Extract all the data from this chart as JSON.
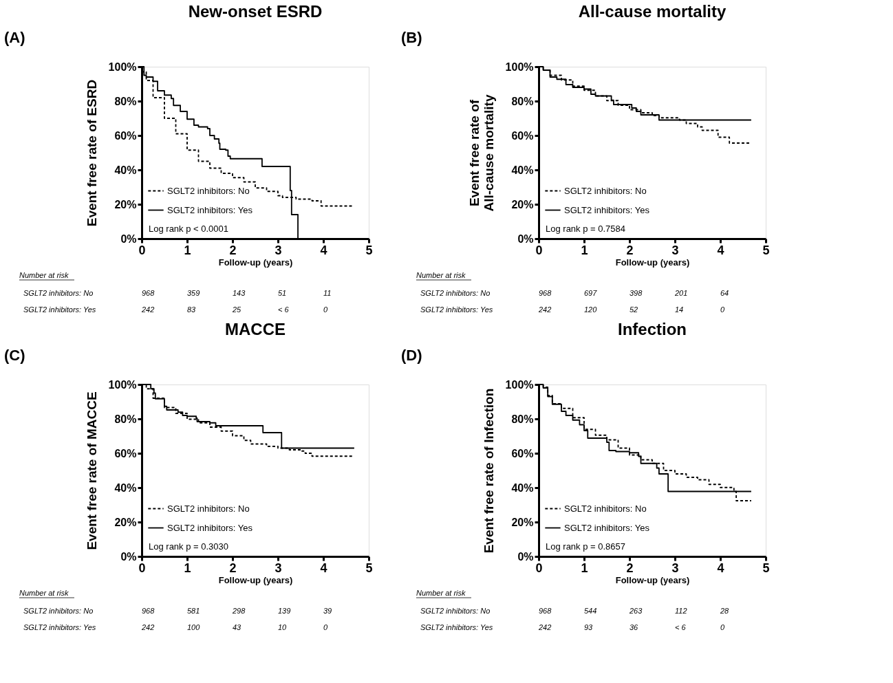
{
  "chart_data": [
    {
      "type": "step",
      "title": "New-onset ESRD",
      "xlabel": "Follow-up (years)",
      "ylabel": "Event free rate of ESRD",
      "legend": "bottom left",
      "xlim": [
        0,
        5
      ],
      "xticks": [
        0,
        1,
        2,
        3,
        4,
        5
      ],
      "ylim": [
        0,
        100
      ],
      "yticks": [
        {
          "value": 0,
          "label": "0%"
        },
        {
          "value": 20,
          "label": "20%"
        },
        {
          "value": 40,
          "label": "40%"
        },
        {
          "value": 60,
          "label": "60%"
        },
        {
          "value": 80,
          "label": "80%"
        },
        {
          "value": 100,
          "label": "100%"
        }
      ],
      "series": [
        {
          "name": "SGLT2 inhibitors: No",
          "color": "#000000",
          "line_style": "dashed",
          "x": [
            0,
            0.02,
            0.1,
            0.25,
            0.5,
            0.75,
            1,
            1.25,
            1.5,
            1.75,
            2,
            2.25,
            2.5,
            2.75,
            3,
            3.1,
            3.4,
            3.75,
            3.95,
            4.65
          ],
          "values": [
            100,
            97,
            92,
            82,
            70,
            61,
            51.5,
            45,
            41,
            38,
            35.5,
            33,
            29.5,
            27.5,
            25,
            24,
            23,
            22,
            19,
            19
          ]
        },
        {
          "name": "SGLT2 inhibitors: Yes",
          "color": "#000000",
          "line_style": "solid",
          "x": [
            0,
            0.05,
            0.1,
            0.25,
            0.35,
            0.5,
            0.65,
            0.7,
            0.85,
            1.0,
            1.15,
            1.25,
            1.45,
            1.5,
            1.6,
            1.7,
            1.72,
            1.85,
            1.9,
            1.95,
            2.65,
            3.27,
            3.3,
            3.44
          ],
          "values": [
            100,
            95,
            94,
            91.5,
            86,
            83.5,
            81.5,
            77.5,
            74,
            69.5,
            66,
            65,
            64,
            60,
            58,
            55.5,
            52,
            51.5,
            48,
            46.5,
            42,
            28,
            14,
            0
          ]
        }
      ],
      "annotations": [
        "(A)",
        "Log rank p < 0.0001",
        "Number at risk",
        "SGLT2 inhibitors: No",
        "968",
        "359",
        "143",
        "51",
        "11",
        "SGLT2 inhibitors: Yes",
        "242",
        "83",
        "25",
        "< 6",
        "0"
      ]
    },
    {
      "type": "step",
      "title": "All-cause mortality",
      "xlabel": "Follow-up (years)",
      "ylabel": "Event free rate of\nAll-cause mortality",
      "legend": "bottom left",
      "xlim": [
        0,
        5
      ],
      "xticks": [
        0,
        1,
        2,
        3,
        4,
        5
      ],
      "ylim": [
        0,
        100
      ],
      "yticks": [
        {
          "value": 0,
          "label": "0%"
        },
        {
          "value": 20,
          "label": "20%"
        },
        {
          "value": 40,
          "label": "40%"
        },
        {
          "value": 60,
          "label": "60%"
        },
        {
          "value": 80,
          "label": "80%"
        },
        {
          "value": 100,
          "label": "100%"
        }
      ],
      "series": [
        {
          "name": "SGLT2 inhibitors: No",
          "color": "#000000",
          "line_style": "dashed",
          "x": [
            0,
            0.1,
            0.25,
            0.5,
            0.75,
            1.0,
            1.25,
            1.5,
            1.75,
            2.0,
            2.25,
            2.5,
            2.65,
            3.1,
            3.25,
            3.5,
            3.6,
            3.95,
            4.2,
            4.65
          ],
          "values": [
            100,
            98,
            95,
            92.3,
            88.7,
            86.3,
            83,
            80.3,
            77.6,
            75,
            73.2,
            71.6,
            70.3,
            69,
            67,
            65,
            63,
            59,
            55.6,
            55.6
          ]
        },
        {
          "name": "SGLT2 inhibitors: Yes",
          "color": "#000000",
          "line_style": "solid",
          "x": [
            0,
            0.1,
            0.25,
            0.4,
            0.6,
            0.75,
            1.0,
            1.15,
            1.25,
            1.6,
            1.65,
            2.05,
            2.15,
            2.25,
            2.65,
            4.68
          ],
          "values": [
            100,
            98,
            94,
            92.7,
            89.6,
            88,
            87,
            84,
            83,
            80.5,
            78,
            76,
            74,
            72,
            69,
            69
          ]
        }
      ],
      "annotations": [
        "(B)",
        "Log rank p = 0.7584",
        "Number at risk",
        "SGLT2 inhibitors: No",
        "968",
        "697",
        "398",
        "201",
        "64",
        "SGLT2 inhibitors: Yes",
        "242",
        "120",
        "52",
        "14",
        "0"
      ]
    },
    {
      "type": "step",
      "title": "MACCE",
      "xlabel": "Follow-up (years)",
      "ylabel": "Event free rate of MACCE",
      "legend": "bottom left",
      "xlim": [
        0,
        5
      ],
      "xticks": [
        0,
        1,
        2,
        3,
        4,
        5
      ],
      "ylim": [
        0,
        100
      ],
      "yticks": [
        {
          "value": 0,
          "label": "0%"
        },
        {
          "value": 20,
          "label": "20%"
        },
        {
          "value": 40,
          "label": "40%"
        },
        {
          "value": 60,
          "label": "60%"
        },
        {
          "value": 80,
          "label": "80%"
        },
        {
          "value": 100,
          "label": "100%"
        }
      ],
      "series": [
        {
          "name": "SGLT2 inhibitors: No",
          "color": "#000000",
          "line_style": "dashed",
          "x": [
            0,
            0.1,
            0.25,
            0.5,
            0.75,
            1.0,
            1.25,
            1.5,
            1.75,
            2.0,
            2.25,
            2.4,
            2.75,
            3.0,
            3.25,
            3.5,
            3.6,
            3.75,
            4.65
          ],
          "values": [
            100,
            97.5,
            92,
            86.6,
            83.2,
            79.8,
            77.7,
            75.2,
            72.9,
            70.2,
            67.5,
            65.4,
            64,
            63,
            62,
            61.3,
            60,
            58.3,
            58.3
          ]
        },
        {
          "name": "SGLT2 inhibitors: Yes",
          "color": "#000000",
          "line_style": "solid",
          "x": [
            0,
            0.2,
            0.27,
            0.3,
            0.5,
            0.55,
            0.8,
            0.9,
            1.0,
            1.2,
            1.22,
            1.5,
            1.63,
            2.67,
            3.08,
            4.68
          ],
          "values": [
            100,
            97.5,
            95,
            91.7,
            87.3,
            85.2,
            83.9,
            82,
            81.5,
            80.4,
            78.4,
            77.7,
            76,
            72,
            63,
            63
          ]
        }
      ],
      "annotations": [
        "(C)",
        "Log rank p = 0.3030",
        "Number at risk",
        "SGLT2 inhibitors: No",
        "968",
        "581",
        "298",
        "139",
        "39",
        "SGLT2 inhibitors: Yes",
        "242",
        "100",
        "43",
        "10",
        "0"
      ]
    },
    {
      "type": "step",
      "title": "Infection",
      "xlabel": "Follow-up (years)",
      "ylabel": "Event free rate of Infection",
      "legend": "bottom left",
      "xlim": [
        0,
        5
      ],
      "xticks": [
        0,
        1,
        2,
        3,
        4,
        5
      ],
      "ylim": [
        0,
        100
      ],
      "yticks": [
        {
          "value": 0,
          "label": "0%"
        },
        {
          "value": 20,
          "label": "20%"
        },
        {
          "value": 40,
          "label": "40%"
        },
        {
          "value": 60,
          "label": "60%"
        },
        {
          "value": 80,
          "label": "80%"
        },
        {
          "value": 100,
          "label": "100%"
        }
      ],
      "series": [
        {
          "name": "SGLT2 inhibitors: No",
          "color": "#000000",
          "line_style": "dashed",
          "x": [
            0,
            0.1,
            0.2,
            0.3,
            0.5,
            0.75,
            1.0,
            1.25,
            1.5,
            1.75,
            2.0,
            2.25,
            2.5,
            2.75,
            3.0,
            3.25,
            3.5,
            3.75,
            4.0,
            4.3,
            4.35,
            4.68
          ],
          "values": [
            100,
            98.4,
            93.6,
            88.8,
            86.1,
            80.7,
            73.9,
            70.5,
            67.8,
            63,
            59,
            56.2,
            54.1,
            50,
            48,
            46,
            44.6,
            41.9,
            40.1,
            37.8,
            32.4,
            32.4
          ]
        },
        {
          "name": "SGLT2 inhibitors: Yes",
          "color": "#000000",
          "line_style": "solid",
          "x": [
            0,
            0.1,
            0.2,
            0.3,
            0.5,
            0.6,
            0.75,
            0.9,
            1.0,
            1.08,
            1.5,
            1.55,
            1.7,
            2.0,
            2.2,
            2.25,
            2.6,
            2.65,
            2.85,
            4.68
          ],
          "values": [
            100,
            98,
            93,
            88.5,
            84.4,
            82,
            79.3,
            76.6,
            73.2,
            68.8,
            66.4,
            61.6,
            61,
            60.3,
            58.2,
            54.1,
            51.4,
            48,
            37.8,
            37.8
          ]
        }
      ],
      "annotations": [
        "(D)",
        "Log rank p = 0.8657",
        "Number at risk",
        "SGLT2 inhibitors: No",
        "968",
        "544",
        "263",
        "112",
        "28",
        "SGLT2 inhibitors: Yes",
        "242",
        "93",
        "36",
        "< 6",
        "0"
      ]
    }
  ]
}
